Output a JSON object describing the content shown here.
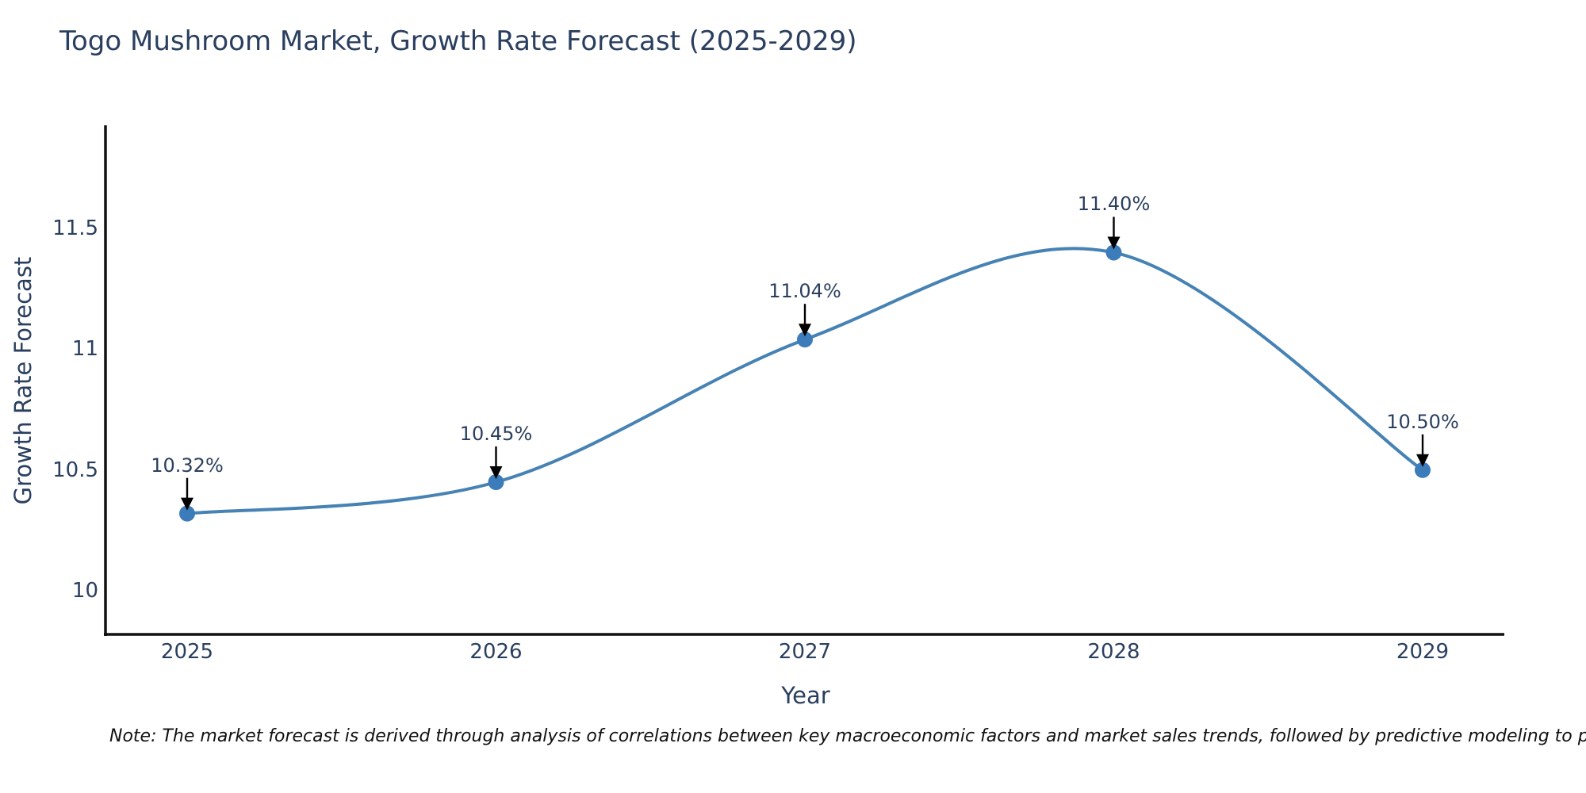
{
  "note": {
    "text": "Note: The market forecast is derived through analysis of correlations between key macroeconomic factors and market sales trends, followed by predictive modeling to project future sal"
  },
  "chart_data": {
    "type": "line",
    "title": "Togo Mushroom Market, Growth Rate Forecast (2025-2029)",
    "xlabel": "Year",
    "ylabel": "Growth Rate Forecast",
    "categories": [
      "2025",
      "2026",
      "2027",
      "2028",
      "2029"
    ],
    "series": [
      {
        "name": "Growth Rate Forecast",
        "values": [
          10.32,
          10.45,
          11.04,
          11.4,
          10.5
        ]
      }
    ],
    "point_labels": [
      "10.32%",
      "10.45%",
      "11.04%",
      "11.40%",
      "10.50%"
    ],
    "line_shape": "spline",
    "markers": true,
    "grid": false,
    "legend": false,
    "yticks": [
      10,
      10.5,
      11,
      11.5
    ],
    "ytick_labels": [
      "10",
      "10.5",
      "11",
      "11.5"
    ],
    "ylim": [
      9.82,
      11.92
    ],
    "colors": {
      "line": "#4682b4",
      "marker": "#3d7cba",
      "arrow": "#000000",
      "axis": "#111111",
      "text": "#2a3f5f",
      "note": "#111111",
      "background": "#ffffff"
    }
  }
}
